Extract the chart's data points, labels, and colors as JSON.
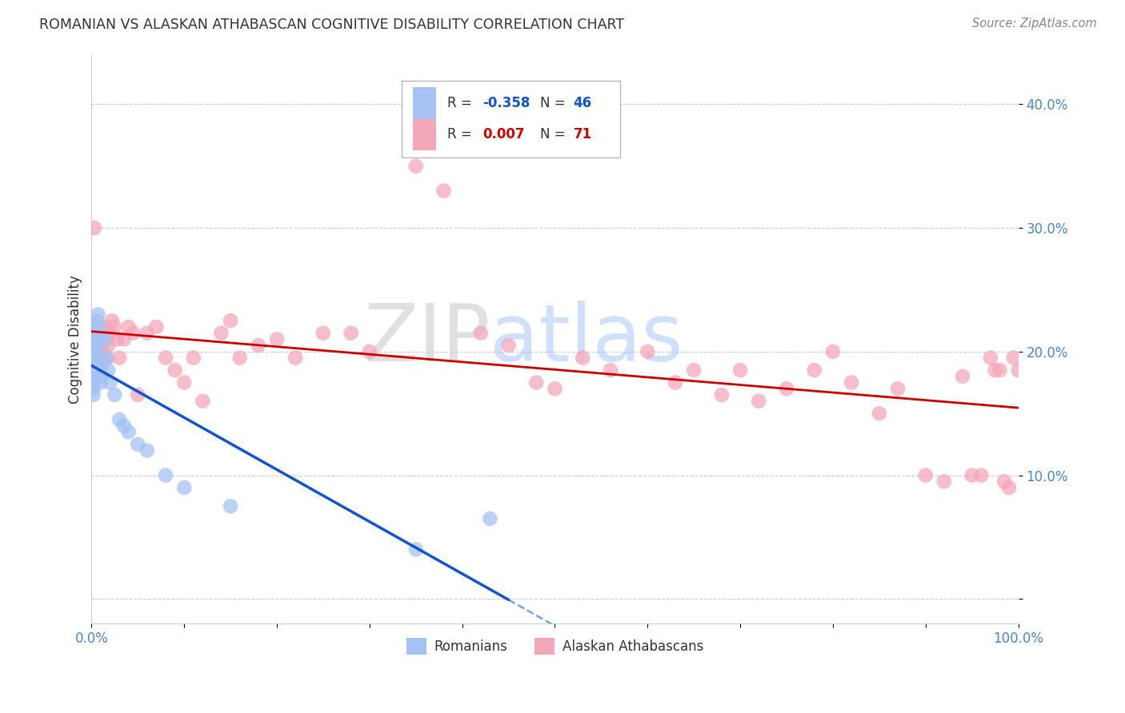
{
  "title": "ROMANIAN VS ALASKAN ATHABASCAN COGNITIVE DISABILITY CORRELATION CHART",
  "source": "Source: ZipAtlas.com",
  "ylabel": "Cognitive Disability",
  "color_blue": "#a4c2f4",
  "color_pink": "#f4a7b9",
  "line_blue": "#1155cc",
  "line_pink": "#cc0000",
  "watermark_zip": "ZIP",
  "watermark_atlas": "atlas",
  "yticks": [
    0.0,
    0.1,
    0.2,
    0.3,
    0.4
  ],
  "ytick_labels": [
    "",
    "10.0%",
    "20.0%",
    "30.0%",
    "40.0%"
  ],
  "xlim": [
    0.0,
    1.0
  ],
  "ylim": [
    -0.02,
    0.44
  ],
  "romanians_x": [
    0.001,
    0.001,
    0.001,
    0.002,
    0.002,
    0.002,
    0.002,
    0.002,
    0.002,
    0.003,
    0.003,
    0.003,
    0.003,
    0.003,
    0.004,
    0.004,
    0.004,
    0.004,
    0.005,
    0.005,
    0.005,
    0.006,
    0.006,
    0.007,
    0.007,
    0.008,
    0.008,
    0.009,
    0.01,
    0.011,
    0.012,
    0.014,
    0.016,
    0.018,
    0.02,
    0.025,
    0.03,
    0.035,
    0.04,
    0.05,
    0.06,
    0.08,
    0.1,
    0.15,
    0.35,
    0.43
  ],
  "romanians_y": [
    0.195,
    0.185,
    0.175,
    0.2,
    0.19,
    0.18,
    0.175,
    0.17,
    0.165,
    0.21,
    0.2,
    0.19,
    0.185,
    0.18,
    0.22,
    0.21,
    0.2,
    0.19,
    0.215,
    0.205,
    0.195,
    0.225,
    0.215,
    0.23,
    0.22,
    0.21,
    0.195,
    0.185,
    0.175,
    0.18,
    0.19,
    0.21,
    0.195,
    0.185,
    0.175,
    0.165,
    0.145,
    0.14,
    0.135,
    0.125,
    0.12,
    0.1,
    0.09,
    0.075,
    0.04,
    0.065
  ],
  "athabascan_x": [
    0.003,
    0.005,
    0.006,
    0.007,
    0.008,
    0.009,
    0.01,
    0.011,
    0.012,
    0.013,
    0.015,
    0.016,
    0.017,
    0.018,
    0.02,
    0.022,
    0.025,
    0.028,
    0.03,
    0.035,
    0.04,
    0.045,
    0.05,
    0.06,
    0.07,
    0.08,
    0.09,
    0.1,
    0.11,
    0.12,
    0.14,
    0.15,
    0.16,
    0.18,
    0.2,
    0.22,
    0.25,
    0.28,
    0.3,
    0.35,
    0.38,
    0.42,
    0.45,
    0.48,
    0.5,
    0.53,
    0.56,
    0.6,
    0.63,
    0.65,
    0.68,
    0.7,
    0.72,
    0.75,
    0.78,
    0.8,
    0.82,
    0.85,
    0.87,
    0.9,
    0.92,
    0.94,
    0.95,
    0.96,
    0.97,
    0.975,
    0.98,
    0.985,
    0.99,
    0.995,
    1.0
  ],
  "athabascan_y": [
    0.3,
    0.195,
    0.21,
    0.2,
    0.19,
    0.2,
    0.21,
    0.2,
    0.195,
    0.215,
    0.22,
    0.21,
    0.195,
    0.205,
    0.215,
    0.225,
    0.22,
    0.21,
    0.195,
    0.21,
    0.22,
    0.215,
    0.165,
    0.215,
    0.22,
    0.195,
    0.185,
    0.175,
    0.195,
    0.16,
    0.215,
    0.225,
    0.195,
    0.205,
    0.21,
    0.195,
    0.215,
    0.215,
    0.2,
    0.35,
    0.33,
    0.215,
    0.205,
    0.175,
    0.17,
    0.195,
    0.185,
    0.2,
    0.175,
    0.185,
    0.165,
    0.185,
    0.16,
    0.17,
    0.185,
    0.2,
    0.175,
    0.15,
    0.17,
    0.1,
    0.095,
    0.18,
    0.1,
    0.1,
    0.195,
    0.185,
    0.185,
    0.095,
    0.09,
    0.195,
    0.185
  ],
  "legend_label1": "Romanians",
  "legend_label2": "Alaskan Athabascans"
}
